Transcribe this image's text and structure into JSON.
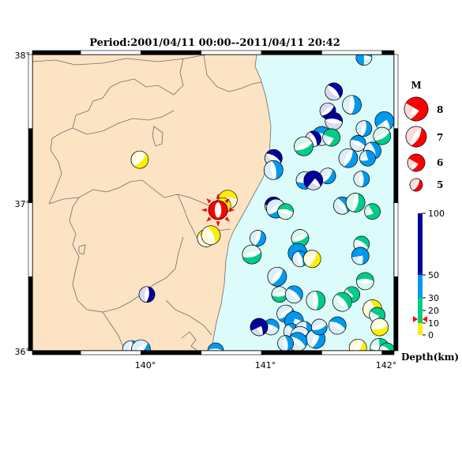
{
  "title": "Period:2001/04/11 00:00--2011/04/11 20:42",
  "lat_labels": [
    "38°",
    "37°",
    "36°"
  ],
  "lon_labels": [
    "140°",
    "141°",
    "142°"
  ],
  "extent": {
    "lon": [
      139.1,
      142.1
    ],
    "lat": [
      36.0,
      38.0
    ]
  },
  "colors": {
    "land": "#fbe3c3",
    "sea": "#dcfbfb",
    "boundary": "#6e6e6e",
    "shallow": "#ffee00",
    "mid": "#00cc88",
    "deep": "#0099ee",
    "deepest": "#000099",
    "highlight": "#ff0000"
  },
  "magnitude_legend": {
    "title": "M",
    "items": [
      "8",
      "7",
      "6",
      "5"
    ]
  },
  "depth_legend": {
    "title": "Depth(km)",
    "ticks": [
      "100",
      "50",
      "30",
      "20",
      "10",
      "0"
    ]
  },
  "mainshock": {
    "lon": 140.64,
    "lat": 36.95,
    "depth_class": "highlight"
  },
  "events": [
    {
      "lon": 141.85,
      "lat": 37.98,
      "d": "deep"
    },
    {
      "lon": 141.6,
      "lat": 37.75,
      "d": "deepest"
    },
    {
      "lon": 141.75,
      "lat": 37.66,
      "d": "deep"
    },
    {
      "lon": 141.55,
      "lat": 37.62,
      "d": "deepest"
    },
    {
      "lon": 141.6,
      "lat": 37.55,
      "d": "deepest"
    },
    {
      "lon": 142.02,
      "lat": 37.55,
      "d": "deep"
    },
    {
      "lon": 141.85,
      "lat": 37.5,
      "d": "deep"
    },
    {
      "lon": 142.0,
      "lat": 37.45,
      "d": "mid"
    },
    {
      "lon": 141.5,
      "lat": 37.45,
      "d": "deep"
    },
    {
      "lon": 141.43,
      "lat": 37.43,
      "d": "deepest"
    },
    {
      "lon": 141.58,
      "lat": 37.44,
      "d": "mid"
    },
    {
      "lon": 141.35,
      "lat": 37.38,
      "d": "mid"
    },
    {
      "lon": 141.8,
      "lat": 37.4,
      "d": "deep"
    },
    {
      "lon": 141.92,
      "lat": 37.35,
      "d": "deep"
    },
    {
      "lon": 141.72,
      "lat": 37.3,
      "d": "deep"
    },
    {
      "lon": 141.88,
      "lat": 37.3,
      "d": "deep"
    },
    {
      "lon": 141.1,
      "lat": 37.3,
      "d": "deepest"
    },
    {
      "lon": 141.1,
      "lat": 37.22,
      "d": "deep"
    },
    {
      "lon": 141.55,
      "lat": 37.18,
      "d": "deep"
    },
    {
      "lon": 141.36,
      "lat": 37.15,
      "d": "deep"
    },
    {
      "lon": 141.43,
      "lat": 37.15,
      "d": "deepest"
    },
    {
      "lon": 141.83,
      "lat": 37.16,
      "d": "deep"
    },
    {
      "lon": 139.99,
      "lat": 37.29,
      "d": "shallow"
    },
    {
      "lon": 140.72,
      "lat": 37.02,
      "d": "shallow"
    },
    {
      "lon": 140.68,
      "lat": 36.98,
      "d": "shallow"
    },
    {
      "lon": 141.1,
      "lat": 36.98,
      "d": "deepest"
    },
    {
      "lon": 141.12,
      "lat": 36.96,
      "d": "deep"
    },
    {
      "lon": 141.2,
      "lat": 36.94,
      "d": "mid"
    },
    {
      "lon": 141.67,
      "lat": 36.98,
      "d": "deep"
    },
    {
      "lon": 141.78,
      "lat": 37.0,
      "d": "mid"
    },
    {
      "lon": 141.92,
      "lat": 36.94,
      "d": "mid"
    },
    {
      "lon": 140.54,
      "lat": 36.76,
      "d": "shallow"
    },
    {
      "lon": 140.58,
      "lat": 36.78,
      "d": "shallow"
    },
    {
      "lon": 140.97,
      "lat": 36.76,
      "d": "deep"
    },
    {
      "lon": 141.32,
      "lat": 36.76,
      "d": "mid"
    },
    {
      "lon": 141.3,
      "lat": 36.66,
      "d": "deep"
    },
    {
      "lon": 141.32,
      "lat": 36.62,
      "d": "deep"
    },
    {
      "lon": 141.42,
      "lat": 36.62,
      "d": "shallow"
    },
    {
      "lon": 140.92,
      "lat": 36.65,
      "d": "mid"
    },
    {
      "lon": 141.83,
      "lat": 36.72,
      "d": "mid"
    },
    {
      "lon": 141.82,
      "lat": 36.64,
      "d": "deep"
    },
    {
      "lon": 141.13,
      "lat": 36.5,
      "d": "deep"
    },
    {
      "lon": 141.15,
      "lat": 36.38,
      "d": "mid"
    },
    {
      "lon": 141.27,
      "lat": 36.38,
      "d": "deep"
    },
    {
      "lon": 141.45,
      "lat": 36.34,
      "d": "mid"
    },
    {
      "lon": 141.75,
      "lat": 36.38,
      "d": "mid"
    },
    {
      "lon": 141.86,
      "lat": 36.47,
      "d": "mid"
    },
    {
      "lon": 141.67,
      "lat": 36.33,
      "d": "mid"
    },
    {
      "lon": 140.05,
      "lat": 36.38,
      "d": "deepest"
    },
    {
      "lon": 141.2,
      "lat": 36.25,
      "d": "deep"
    },
    {
      "lon": 141.27,
      "lat": 36.2,
      "d": "deep"
    },
    {
      "lon": 141.25,
      "lat": 36.13,
      "d": "deep"
    },
    {
      "lon": 141.35,
      "lat": 36.14,
      "d": "deep"
    },
    {
      "lon": 141.32,
      "lat": 36.1,
      "d": "deep"
    },
    {
      "lon": 141.08,
      "lat": 36.16,
      "d": "deep"
    },
    {
      "lon": 140.98,
      "lat": 36.16,
      "d": "deepest"
    },
    {
      "lon": 141.45,
      "lat": 36.08,
      "d": "deep"
    },
    {
      "lon": 141.48,
      "lat": 36.16,
      "d": "deep"
    },
    {
      "lon": 141.63,
      "lat": 36.17,
      "d": "deep"
    },
    {
      "lon": 141.92,
      "lat": 36.28,
      "d": "shallow"
    },
    {
      "lon": 141.96,
      "lat": 36.24,
      "d": "mid"
    },
    {
      "lon": 141.98,
      "lat": 36.16,
      "d": "shallow"
    },
    {
      "lon": 141.3,
      "lat": 36.06,
      "d": "deep"
    },
    {
      "lon": 141.2,
      "lat": 36.05,
      "d": "deep"
    },
    {
      "lon": 141.8,
      "lat": 36.02,
      "d": "shallow"
    },
    {
      "lon": 141.98,
      "lat": 36.02,
      "d": "mid"
    },
    {
      "lon": 142.04,
      "lat": 36.0,
      "d": "mid"
    },
    {
      "lon": 139.92,
      "lat": 36.01,
      "d": "deep"
    },
    {
      "lon": 140.0,
      "lat": 36.01,
      "d": "deep"
    },
    {
      "lon": 140.62,
      "lat": 36.0,
      "d": "deep"
    }
  ]
}
